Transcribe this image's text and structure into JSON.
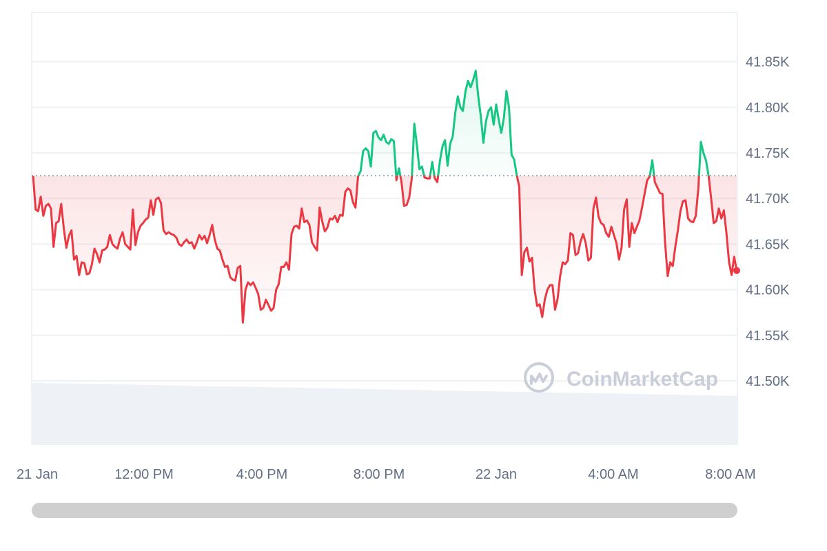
{
  "chart_data": {
    "type": "line",
    "x_ticks": [
      "21 Jan",
      "12:00 PM",
      "4:00 PM",
      "8:00 PM",
      "22 Jan",
      "4:00 AM",
      "8:00 AM"
    ],
    "y_ticks": [
      "41.85K",
      "41.80K",
      "41.75K",
      "41.70K",
      "41.65K",
      "41.60K",
      "41.55K",
      "41.50K"
    ],
    "ylim": [
      41.43,
      41.895
    ],
    "baseline": 41.725,
    "colors": {
      "up": "#16c784",
      "down": "#ea3943",
      "grid": "#eff2f5",
      "volume": "#eef1f5",
      "baseline": "#858ca2"
    },
    "series": [
      {
        "values": [
          41.725,
          41.688,
          41.686,
          41.702,
          41.681,
          41.692,
          41.694,
          41.689,
          41.647,
          41.673,
          41.675,
          41.694,
          41.667,
          41.646,
          41.659,
          41.665,
          41.633,
          41.637,
          41.616,
          41.63,
          41.629,
          41.617,
          41.618,
          41.628,
          41.645,
          41.639,
          41.63,
          41.643,
          41.644,
          41.647,
          41.66,
          41.65,
          41.647,
          41.645,
          41.656,
          41.663,
          41.65,
          41.647,
          41.644,
          41.688,
          41.649,
          41.663,
          41.67,
          41.673,
          41.677,
          41.679,
          41.698,
          41.682,
          41.699,
          41.701,
          41.695,
          41.665,
          41.661,
          41.663,
          41.661,
          41.66,
          41.657,
          41.65,
          41.648,
          41.652,
          41.655,
          41.651,
          41.652,
          41.645,
          41.652,
          41.66,
          41.655,
          41.659,
          41.651,
          41.66,
          41.671,
          41.655,
          41.645,
          41.643,
          41.633,
          41.625,
          41.626,
          41.614,
          41.611,
          41.61,
          41.624,
          41.626,
          41.564,
          41.6,
          41.608,
          41.605,
          41.608,
          41.602,
          41.595,
          41.578,
          41.58,
          41.589,
          41.583,
          41.577,
          41.58,
          41.6,
          41.606,
          41.625,
          41.625,
          41.63,
          41.622,
          41.661,
          41.669,
          41.67,
          41.667,
          41.689,
          41.674,
          41.676,
          41.671,
          41.652,
          41.647,
          41.643,
          41.69,
          41.675,
          41.664,
          41.668,
          41.678,
          41.677,
          41.681,
          41.674,
          41.682,
          41.681,
          41.707,
          41.711,
          41.709,
          41.696,
          41.69,
          41.724,
          41.73,
          41.752,
          41.755,
          41.752,
          41.735,
          41.772,
          41.774,
          41.767,
          41.764,
          41.77,
          41.762,
          41.76,
          41.765,
          41.763,
          41.72,
          41.733,
          41.718,
          41.692,
          41.693,
          41.701,
          41.722,
          41.782,
          41.759,
          41.732,
          41.735,
          41.723,
          41.722,
          41.722,
          41.74,
          41.722,
          41.718,
          41.741,
          41.757,
          41.764,
          41.736,
          41.76,
          41.768,
          41.794,
          41.812,
          41.8,
          41.796,
          41.818,
          41.829,
          41.822,
          41.83,
          41.84,
          41.812,
          41.79,
          41.761,
          41.785,
          41.796,
          41.8,
          41.781,
          41.803,
          41.786,
          41.772,
          41.788,
          41.818,
          41.8,
          41.748,
          41.743,
          41.726,
          41.713,
          41.616,
          41.641,
          41.646,
          41.631,
          41.635,
          41.6,
          41.582,
          41.584,
          41.57,
          41.589,
          41.6,
          41.605,
          41.605,
          41.578,
          41.59,
          41.615,
          41.63,
          41.628,
          41.632,
          41.662,
          41.66,
          41.638,
          41.64,
          41.653,
          41.661,
          41.651,
          41.632,
          41.635,
          41.689,
          41.701,
          41.68,
          41.673,
          41.671,
          41.662,
          41.658,
          41.669,
          41.66,
          41.651,
          41.633,
          41.646,
          41.688,
          41.699,
          41.647,
          41.673,
          41.662,
          41.669,
          41.676,
          41.69,
          41.705,
          41.72,
          41.724,
          41.742,
          41.718,
          41.712,
          41.706,
          41.705,
          41.652,
          41.615,
          41.63,
          41.626,
          41.647,
          41.665,
          41.686,
          41.697,
          41.698,
          41.678,
          41.675,
          41.674,
          41.681,
          41.711,
          41.762,
          41.75,
          41.742,
          41.725,
          41.7,
          41.673,
          41.675,
          41.689,
          41.678,
          41.687,
          41.662,
          41.63,
          41.616,
          41.636,
          41.621
        ]
      }
    ]
  },
  "watermark": {
    "text": "CoinMarketCap",
    "icon": "coinmarketcap-logo-icon"
  }
}
